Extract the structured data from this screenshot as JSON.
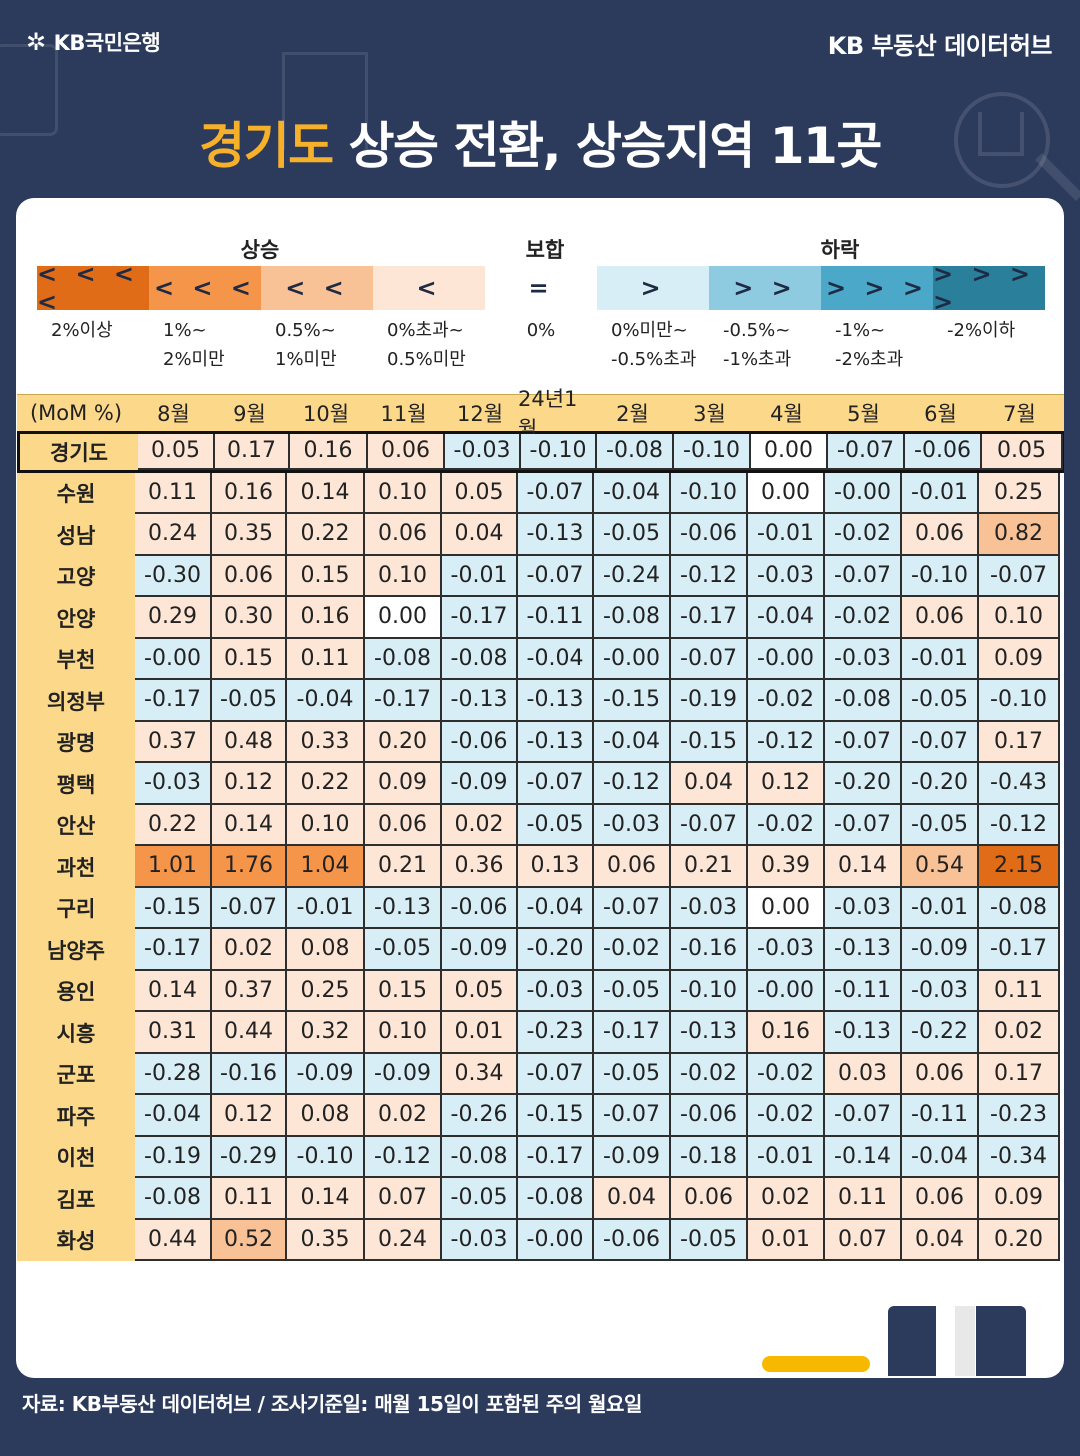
{
  "brand": {
    "logo_text": "KB국민은행",
    "right_text": "KB 부동산  데이터허브"
  },
  "title": {
    "highlight": "경기도",
    "rest": " 상승 전환, 상승지역 11곳"
  },
  "legend": {
    "groups": {
      "up": "상승",
      "flat": "보합",
      "down": "하락"
    },
    "items": [
      {
        "symbol": "< < < <",
        "label": "2%이상",
        "color": "#e06c18"
      },
      {
        "symbol": "< < <",
        "label": "1%~\n2%미만",
        "color": "#f5954a"
      },
      {
        "symbol": "< <",
        "label": "0.5%~\n1%미만",
        "color": "#f8c296"
      },
      {
        "symbol": "<",
        "label": "0%초과~\n0.5%미만",
        "color": "#fde6d6"
      },
      {
        "symbol": "=",
        "label": "0%",
        "color": "#ffffff"
      },
      {
        "symbol": ">",
        "label": "0%미만~\n-0.5%초과",
        "color": "#d8eef6"
      },
      {
        "symbol": "> >",
        "label": "-0.5%~\n-1%초과",
        "color": "#8fcbe0"
      },
      {
        "symbol": "> > >",
        "label": "-1%~\n-2%초과",
        "color": "#4ba8c8"
      },
      {
        "symbol": "> > > >",
        "label": "-2%이하",
        "color": "#2a7f9a"
      }
    ]
  },
  "chart_data": {
    "type": "table",
    "title": "경기도 상승 전환, 상승지역 11곳",
    "unit_label": "(MoM %)",
    "columns": [
      "8월",
      "9월",
      "10월",
      "11월",
      "12월",
      "24년1월",
      "2월",
      "3월",
      "4월",
      "5월",
      "6월",
      "7월"
    ],
    "rows": [
      {
        "region": "경기도",
        "values": [
          "0.05",
          "0.17",
          "0.16",
          "0.06",
          "-0.03",
          "-0.10",
          "-0.08",
          "-0.10",
          "0.00",
          "-0.07",
          "-0.06",
          "0.05"
        ]
      },
      {
        "region": "수원",
        "values": [
          "0.11",
          "0.16",
          "0.14",
          "0.10",
          "0.05",
          "-0.07",
          "-0.04",
          "-0.10",
          "0.00",
          "-0.00",
          "-0.01",
          "0.25"
        ]
      },
      {
        "region": "성남",
        "values": [
          "0.24",
          "0.35",
          "0.22",
          "0.06",
          "0.04",
          "-0.13",
          "-0.05",
          "-0.06",
          "-0.01",
          "-0.02",
          "0.06",
          "0.82"
        ]
      },
      {
        "region": "고양",
        "values": [
          "-0.30",
          "0.06",
          "0.15",
          "0.10",
          "-0.01",
          "-0.07",
          "-0.24",
          "-0.12",
          "-0.03",
          "-0.07",
          "-0.10",
          "-0.07"
        ]
      },
      {
        "region": "안양",
        "values": [
          "0.29",
          "0.30",
          "0.16",
          "0.00",
          "-0.17",
          "-0.11",
          "-0.08",
          "-0.17",
          "-0.04",
          "-0.02",
          "0.06",
          "0.10"
        ]
      },
      {
        "region": "부천",
        "values": [
          "-0.00",
          "0.15",
          "0.11",
          "-0.08",
          "-0.08",
          "-0.04",
          "-0.00",
          "-0.07",
          "-0.00",
          "-0.03",
          "-0.01",
          "0.09"
        ]
      },
      {
        "region": "의정부",
        "values": [
          "-0.17",
          "-0.05",
          "-0.04",
          "-0.17",
          "-0.13",
          "-0.13",
          "-0.15",
          "-0.19",
          "-0.02",
          "-0.08",
          "-0.05",
          "-0.10"
        ]
      },
      {
        "region": "광명",
        "values": [
          "0.37",
          "0.48",
          "0.33",
          "0.20",
          "-0.06",
          "-0.13",
          "-0.04",
          "-0.15",
          "-0.12",
          "-0.07",
          "-0.07",
          "0.17"
        ]
      },
      {
        "region": "평택",
        "values": [
          "-0.03",
          "0.12",
          "0.22",
          "0.09",
          "-0.09",
          "-0.07",
          "-0.12",
          "0.04",
          "0.12",
          "-0.20",
          "-0.20",
          "-0.43"
        ]
      },
      {
        "region": "안산",
        "values": [
          "0.22",
          "0.14",
          "0.10",
          "0.06",
          "0.02",
          "-0.05",
          "-0.03",
          "-0.07",
          "-0.02",
          "-0.07",
          "-0.05",
          "-0.12"
        ]
      },
      {
        "region": "과천",
        "values": [
          "1.01",
          "1.76",
          "1.04",
          "0.21",
          "0.36",
          "0.13",
          "0.06",
          "0.21",
          "0.39",
          "0.14",
          "0.54",
          "2.15"
        ]
      },
      {
        "region": "구리",
        "values": [
          "-0.15",
          "-0.07",
          "-0.01",
          "-0.13",
          "-0.06",
          "-0.04",
          "-0.07",
          "-0.03",
          "0.00",
          "-0.03",
          "-0.01",
          "-0.08"
        ]
      },
      {
        "region": "남양주",
        "values": [
          "-0.17",
          "0.02",
          "0.08",
          "-0.05",
          "-0.09",
          "-0.20",
          "-0.02",
          "-0.16",
          "-0.03",
          "-0.13",
          "-0.09",
          "-0.17"
        ]
      },
      {
        "region": "용인",
        "values": [
          "0.14",
          "0.37",
          "0.25",
          "0.15",
          "0.05",
          "-0.03",
          "-0.05",
          "-0.10",
          "-0.00",
          "-0.11",
          "-0.03",
          "0.11"
        ]
      },
      {
        "region": "시흥",
        "values": [
          "0.31",
          "0.44",
          "0.32",
          "0.10",
          "0.01",
          "-0.23",
          "-0.17",
          "-0.13",
          "0.16",
          "-0.13",
          "-0.22",
          "0.02"
        ]
      },
      {
        "region": "군포",
        "values": [
          "-0.28",
          "-0.16",
          "-0.09",
          "-0.09",
          "0.34",
          "-0.07",
          "-0.05",
          "-0.02",
          "-0.02",
          "0.03",
          "0.06",
          "0.17"
        ]
      },
      {
        "region": "파주",
        "values": [
          "-0.04",
          "0.12",
          "0.08",
          "0.02",
          "-0.26",
          "-0.15",
          "-0.07",
          "-0.06",
          "-0.02",
          "-0.07",
          "-0.11",
          "-0.23"
        ]
      },
      {
        "region": "이천",
        "values": [
          "-0.19",
          "-0.29",
          "-0.10",
          "-0.12",
          "-0.08",
          "-0.17",
          "-0.09",
          "-0.18",
          "-0.01",
          "-0.14",
          "-0.04",
          "-0.34"
        ]
      },
      {
        "region": "김포",
        "values": [
          "-0.08",
          "0.11",
          "0.14",
          "0.07",
          "-0.05",
          "-0.08",
          "0.04",
          "0.06",
          "0.02",
          "0.11",
          "0.06",
          "0.09"
        ]
      },
      {
        "region": "화성",
        "values": [
          "0.44",
          "0.52",
          "0.35",
          "0.24",
          "-0.03",
          "-0.00",
          "-0.06",
          "-0.05",
          "0.01",
          "0.07",
          "0.04",
          "0.20"
        ]
      }
    ]
  },
  "footer": {
    "source": "자료: KB부동산 데이터허브 / 조사기준일: 매월 15일이 포함된 주의 월요일"
  }
}
